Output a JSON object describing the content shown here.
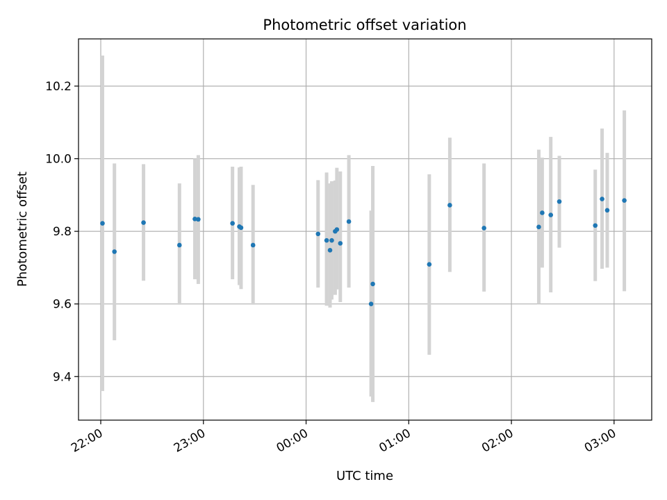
{
  "chart_data": {
    "type": "scatter",
    "title": "Photometric offset variation",
    "xlabel": "UTC time",
    "ylabel": "Photometric offset",
    "x_tick_labels": [
      "22:00",
      "23:00",
      "00:00",
      "01:00",
      "02:00",
      "03:00"
    ],
    "x_tick_times": [
      "22:00",
      "23:00",
      "00:00",
      "01:00",
      "02:00",
      "03:00"
    ],
    "y_tick_labels": [
      "9.4",
      "9.6",
      "9.8",
      "10.0",
      "10.2"
    ],
    "y_ticks": [
      9.4,
      9.6,
      9.8,
      10.0,
      10.2
    ],
    "xlim": [
      "21:47",
      "03:22"
    ],
    "ylim": [
      9.28,
      10.33
    ],
    "grid": true,
    "colors": {
      "marker": "#1f77b4",
      "errorbar": "#d3d3d3",
      "grid": "#b0b0b0"
    },
    "points": [
      {
        "t": "22:01",
        "y": 9.822,
        "ylo": 9.36,
        "yhi": 10.284
      },
      {
        "t": "22:08",
        "y": 9.744,
        "ylo": 9.5,
        "yhi": 9.987
      },
      {
        "t": "22:25",
        "y": 9.824,
        "ylo": 9.664,
        "yhi": 9.985
      },
      {
        "t": "22:46",
        "y": 9.762,
        "ylo": 9.598,
        "yhi": 9.932
      },
      {
        "t": "22:55",
        "y": 9.834,
        "ylo": 9.668,
        "yhi": 10.0
      },
      {
        "t": "22:57",
        "y": 9.833,
        "ylo": 9.655,
        "yhi": 10.01
      },
      {
        "t": "23:17",
        "y": 9.822,
        "ylo": 9.668,
        "yhi": 9.978
      },
      {
        "t": "23:21",
        "y": 9.813,
        "ylo": 9.652,
        "yhi": 9.976
      },
      {
        "t": "23:22",
        "y": 9.81,
        "ylo": 9.641,
        "yhi": 9.978
      },
      {
        "t": "23:29",
        "y": 9.762,
        "ylo": 9.598,
        "yhi": 9.928
      },
      {
        "t": "00:07",
        "y": 9.793,
        "ylo": 9.645,
        "yhi": 9.941
      },
      {
        "t": "00:12",
        "y": 9.775,
        "ylo": 9.595,
        "yhi": 9.962
      },
      {
        "t": "00:14",
        "y": 9.748,
        "ylo": 9.59,
        "yhi": 9.932
      },
      {
        "t": "00:15",
        "y": 9.775,
        "ylo": 9.612,
        "yhi": 9.938
      },
      {
        "t": "00:17",
        "y": 9.8,
        "ylo": 9.625,
        "yhi": 9.94
      },
      {
        "t": "00:18",
        "y": 9.805,
        "ylo": 9.64,
        "yhi": 9.975
      },
      {
        "t": "00:20",
        "y": 9.767,
        "ylo": 9.605,
        "yhi": 9.965
      },
      {
        "t": "00:25",
        "y": 9.827,
        "ylo": 9.645,
        "yhi": 10.01
      },
      {
        "t": "00:38",
        "y": 9.6,
        "ylo": 9.345,
        "yhi": 9.857
      },
      {
        "t": "00:39",
        "y": 9.655,
        "ylo": 9.33,
        "yhi": 9.98
      },
      {
        "t": "01:12",
        "y": 9.709,
        "ylo": 9.46,
        "yhi": 9.957
      },
      {
        "t": "01:24",
        "y": 9.872,
        "ylo": 9.688,
        "yhi": 10.058
      },
      {
        "t": "01:44",
        "y": 9.809,
        "ylo": 9.634,
        "yhi": 9.987
      },
      {
        "t": "02:16",
        "y": 9.812,
        "ylo": 9.6,
        "yhi": 10.025
      },
      {
        "t": "02:18",
        "y": 9.851,
        "ylo": 9.7,
        "yhi": 10.003
      },
      {
        "t": "02:23",
        "y": 9.845,
        "ylo": 9.632,
        "yhi": 10.06
      },
      {
        "t": "02:28",
        "y": 9.882,
        "ylo": 9.755,
        "yhi": 10.008
      },
      {
        "t": "02:49",
        "y": 9.816,
        "ylo": 9.663,
        "yhi": 9.97
      },
      {
        "t": "02:53",
        "y": 9.889,
        "ylo": 9.697,
        "yhi": 10.083
      },
      {
        "t": "02:56",
        "y": 9.858,
        "ylo": 9.7,
        "yhi": 10.016
      },
      {
        "t": "03:06",
        "y": 9.885,
        "ylo": 9.635,
        "yhi": 10.133
      }
    ]
  }
}
